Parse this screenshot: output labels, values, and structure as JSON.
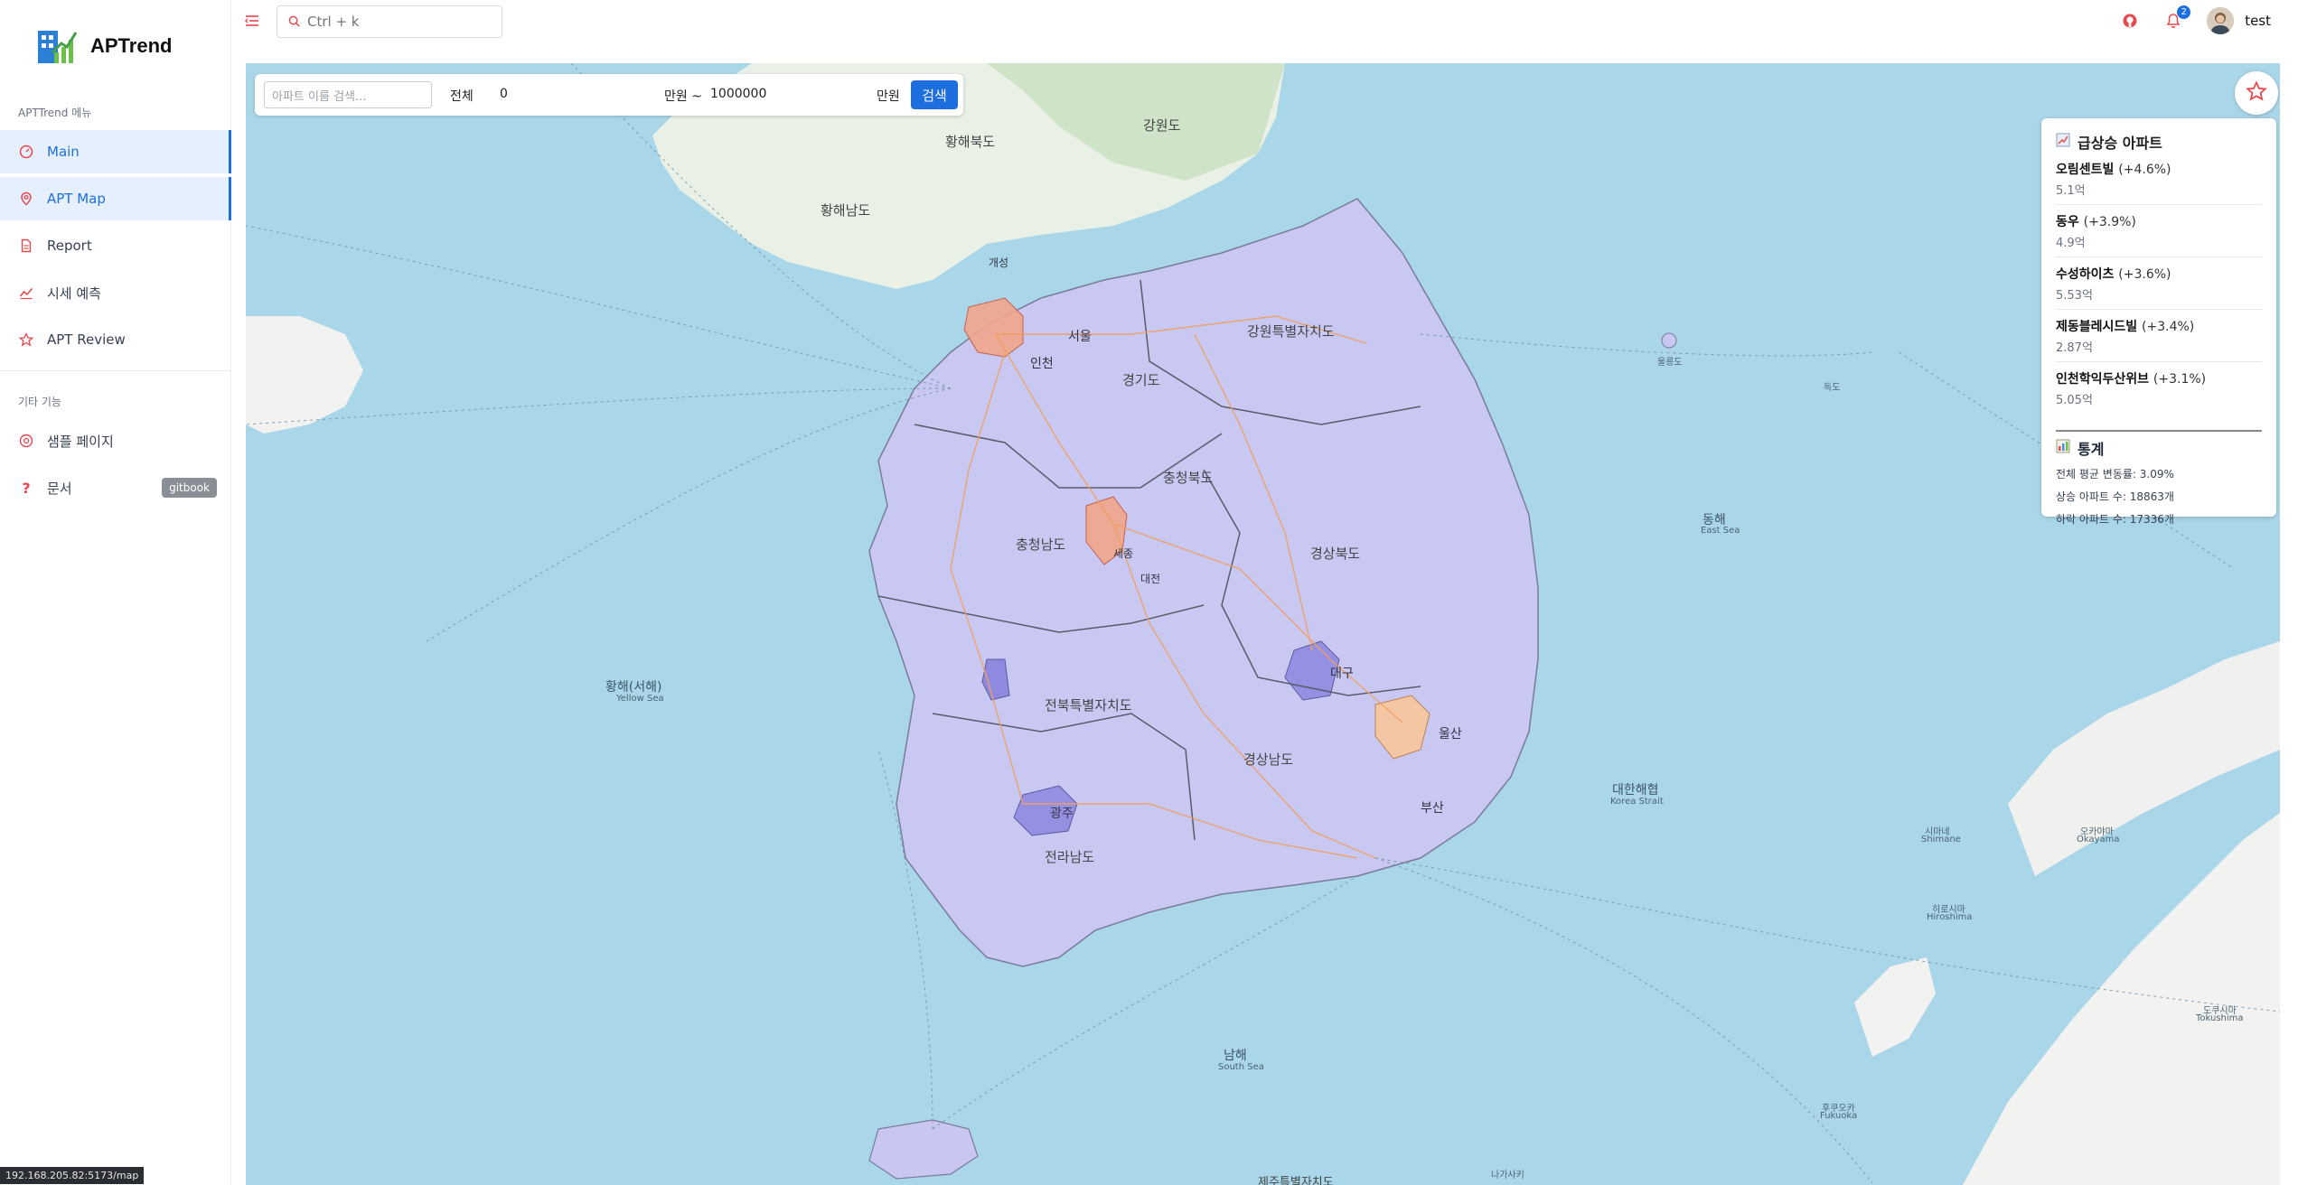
{
  "app": {
    "name": "APTrend"
  },
  "sidebar": {
    "section1": "APTTrend 메뉴",
    "items": [
      {
        "label": "Main",
        "active": true
      },
      {
        "label": "APT Map",
        "active": true
      },
      {
        "label": "Report",
        "active": false
      },
      {
        "label": "시세 예측",
        "active": false
      },
      {
        "label": "APT Review",
        "active": false
      }
    ],
    "section2": "기타 기능",
    "extra_items": [
      {
        "label": "샘플 페이지"
      },
      {
        "label": "문서",
        "badge": "gitbook"
      }
    ]
  },
  "header": {
    "search_placeholder": "Ctrl + k",
    "notification_count": "2",
    "user_name": "test"
  },
  "filter": {
    "name_placeholder": "아파트 이름 검색...",
    "scope_label": "전체",
    "min_value": "0",
    "unit_from": "만원 ~",
    "max_value": "1000000",
    "unit_to": "만원",
    "search_label": "검색"
  },
  "rising": {
    "title": "급상승 아파트",
    "items": [
      {
        "name": "오림센트빌",
        "pct": "(+4.6%)",
        "price": "5.1억"
      },
      {
        "name": "동우",
        "pct": "(+3.9%)",
        "price": "4.9억"
      },
      {
        "name": "수성하이츠",
        "pct": "(+3.6%)",
        "price": "5.53억"
      },
      {
        "name": "제동블레시드빌",
        "pct": "(+3.4%)",
        "price": "2.87억"
      },
      {
        "name": "인천학익두산위브",
        "pct": "(+3.1%)",
        "price": "5.05억"
      }
    ]
  },
  "stats": {
    "title": "통계",
    "avg_change": "전체 평균 변동률: 3.09%",
    "up_count": "상승 아파트 수: 18863개",
    "down_count": "하락 아파트 수: 17336개"
  },
  "map_labels": {
    "gangwon_nk": "강원도",
    "hwanghae_n": "황해북도",
    "hwanghae_s": "황해남도",
    "gaeseong": "개성",
    "gangwon_s": "강원특별자치도",
    "gyeonggi": "경기도",
    "seoul": "서울",
    "incheon": "인천",
    "chungbuk": "충청북도",
    "chungnam": "충청남도",
    "sejong": "세종",
    "daejeon": "대전",
    "gyeongbuk": "경상북도",
    "jeonbuk": "전북특별자치도",
    "daegu": "대구",
    "ulsan": "울산",
    "gyeongnam": "경상남도",
    "busan": "부산",
    "gwangju": "광주",
    "jeonnam": "전라남도",
    "jeju": "제주특별자치도",
    "yellow_sea": "황해(서해)",
    "yellow_sea_en": "Yellow Sea",
    "east_sea": "동해",
    "east_sea_en": "East Sea",
    "korea_strait": "대한해협",
    "korea_strait_en": "Korea Strait",
    "south_sea": "남해",
    "south_sea_en": "South Sea",
    "shimane": "시마네",
    "shimane_en": "Shimane",
    "okayama": "오카야마",
    "okayama_en": "Okayama",
    "hiroshima": "히로시마",
    "hiroshima_en": "Hiroshima",
    "fukuoka": "후쿠오카",
    "fukuoka_en": "Fukuoka",
    "tokushima": "도쿠시마",
    "tokushima_en": "Tokushima",
    "nagasaki": "나가사키",
    "dokdo": "독도",
    "ulleungdo": "울릉도"
  },
  "status_url": "192.168.205.82:5173/map",
  "colors": {
    "accent": "#1d6fe0",
    "icon": "#e5484d",
    "sea": "#a9d7e9",
    "region": "#c9c7f2"
  }
}
